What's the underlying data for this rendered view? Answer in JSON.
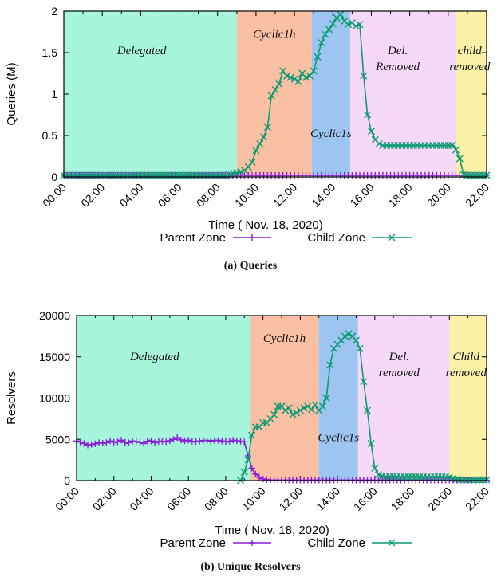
{
  "chart_data": [
    {
      "type": "line",
      "caption": "(a) Queries",
      "ylabel": "Queries (M)",
      "xlabel": "Time ( Nov. 18, 2020)",
      "x_ticks": [
        "00:00",
        "02:00",
        "04:00",
        "06:00",
        "08:00",
        "10:00",
        "12:00",
        "14:00",
        "16:00",
        "18:00",
        "20:00",
        "22:00"
      ],
      "xlim": [
        0,
        22
      ],
      "ylim": [
        0,
        2
      ],
      "y_ticks": [
        0,
        0.5,
        1,
        1.5,
        2
      ],
      "y_tick_labels": [
        "0",
        "0.5",
        "1",
        "1.5",
        "2"
      ],
      "legend": {
        "position": "bottom"
      },
      "regions": [
        {
          "name": "Delegated",
          "from": 0,
          "to": 9.0,
          "color": "#a7f5dc"
        },
        {
          "name": "Cyclic1h",
          "from": 9.0,
          "to": 12.9,
          "color": "#f9c0a4"
        },
        {
          "name": "Cyclic1s",
          "from": 12.9,
          "to": 14.9,
          "color": "#9cc5f2"
        },
        {
          "name": "Del. Removed",
          "from": 14.9,
          "to": 20.4,
          "color": "#f6d8f8"
        },
        {
          "name": "child removed",
          "from": 20.4,
          "to": 22,
          "color": "#faf2a6"
        }
      ],
      "series": [
        {
          "name": "Parent Zone",
          "color": "#8a1fd6",
          "marker": "plus",
          "points": [
            [
              0,
              0.02
            ],
            [
              22,
              0.02
            ]
          ]
        },
        {
          "name": "Child Zone",
          "color": "#0c9a70",
          "marker": "x",
          "points": [
            [
              0,
              0.02
            ],
            [
              8.5,
              0.02
            ],
            [
              8.8,
              0.04
            ],
            [
              9.0,
              0.05
            ],
            [
              9.2,
              0.06
            ],
            [
              9.4,
              0.08
            ],
            [
              9.6,
              0.12
            ],
            [
              9.8,
              0.18
            ],
            [
              10.0,
              0.32
            ],
            [
              10.2,
              0.4
            ],
            [
              10.4,
              0.48
            ],
            [
              10.6,
              0.6
            ],
            [
              10.8,
              0.98
            ],
            [
              11.0,
              1.05
            ],
            [
              11.2,
              1.12
            ],
            [
              11.4,
              1.28
            ],
            [
              11.6,
              1.22
            ],
            [
              11.8,
              1.2
            ],
            [
              12.0,
              1.18
            ],
            [
              12.2,
              1.15
            ],
            [
              12.4,
              1.25
            ],
            [
              12.6,
              1.2
            ],
            [
              12.8,
              1.22
            ],
            [
              13.0,
              1.28
            ],
            [
              13.2,
              1.45
            ],
            [
              13.4,
              1.62
            ],
            [
              13.6,
              1.72
            ],
            [
              13.8,
              1.78
            ],
            [
              14.0,
              1.85
            ],
            [
              14.2,
              1.92
            ],
            [
              14.4,
              1.96
            ],
            [
              14.6,
              1.88
            ],
            [
              14.8,
              1.84
            ],
            [
              15.0,
              1.86
            ],
            [
              15.2,
              1.82
            ],
            [
              15.4,
              1.84
            ],
            [
              15.6,
              1.22
            ],
            [
              15.8,
              0.75
            ],
            [
              16.0,
              0.55
            ],
            [
              16.2,
              0.45
            ],
            [
              16.4,
              0.4
            ],
            [
              16.6,
              0.38
            ],
            [
              16.8,
              0.38
            ],
            [
              17.0,
              0.38
            ],
            [
              17.5,
              0.38
            ],
            [
              18.0,
              0.38
            ],
            [
              18.5,
              0.38
            ],
            [
              19.0,
              0.38
            ],
            [
              19.5,
              0.38
            ],
            [
              20.0,
              0.38
            ],
            [
              20.3,
              0.38
            ],
            [
              20.6,
              0.22
            ],
            [
              20.8,
              0.03
            ],
            [
              21.0,
              0.02
            ],
            [
              22,
              0.02
            ]
          ]
        }
      ]
    },
    {
      "type": "line",
      "caption": "(b) Unique Resolvers",
      "ylabel": "Resolvers",
      "xlabel": "Time ( Nov. 18, 2020)",
      "x_ticks": [
        "00:00",
        "02:00",
        "04:00",
        "06:00",
        "08:00",
        "10:00",
        "12:00",
        "14:00",
        "16:00",
        "18:00",
        "20:00",
        "22:00"
      ],
      "xlim": [
        0,
        22
      ],
      "ylim": [
        0,
        20000
      ],
      "y_ticks": [
        0,
        5000,
        10000,
        15000,
        20000
      ],
      "y_tick_labels": [
        "0",
        "5000",
        "10000",
        "15000",
        "20000"
      ],
      "legend": {
        "position": "bottom"
      },
      "regions": [
        {
          "name": "Delegated",
          "from": 0,
          "to": 9.3,
          "color": "#a7f5dc"
        },
        {
          "name": "Cyclic1h",
          "from": 9.3,
          "to": 13.0,
          "color": "#f9c0a4"
        },
        {
          "name": "Cyclic1s",
          "from": 13.0,
          "to": 15.1,
          "color": "#9cc5f2"
        },
        {
          "name": "Del. removed",
          "from": 15.1,
          "to": 20.0,
          "color": "#f6d8f8"
        },
        {
          "name": "Child removed",
          "from": 20.0,
          "to": 22,
          "color": "#faf2a6"
        }
      ],
      "series": [
        {
          "name": "Parent Zone",
          "color": "#8a1fd6",
          "marker": "plus",
          "points": [
            [
              0,
              4800
            ],
            [
              0.3,
              4600
            ],
            [
              0.6,
              4300
            ],
            [
              0.9,
              4400
            ],
            [
              1.2,
              4600
            ],
            [
              1.5,
              4500
            ],
            [
              1.8,
              4800
            ],
            [
              2.1,
              4600
            ],
            [
              2.4,
              4900
            ],
            [
              2.7,
              4500
            ],
            [
              3.0,
              4800
            ],
            [
              3.3,
              4700
            ],
            [
              3.6,
              4500
            ],
            [
              3.9,
              4900
            ],
            [
              4.2,
              4600
            ],
            [
              4.5,
              4800
            ],
            [
              4.8,
              4700
            ],
            [
              5.1,
              4900
            ],
            [
              5.4,
              5200
            ],
            [
              5.7,
              4800
            ],
            [
              6.0,
              4900
            ],
            [
              6.3,
              4700
            ],
            [
              6.6,
              4800
            ],
            [
              6.9,
              4900
            ],
            [
              7.2,
              4800
            ],
            [
              7.5,
              4900
            ],
            [
              7.8,
              4800
            ],
            [
              8.1,
              4700
            ],
            [
              8.4,
              4900
            ],
            [
              8.7,
              4800
            ],
            [
              9.0,
              4700
            ],
            [
              9.2,
              3000
            ],
            [
              9.4,
              1500
            ],
            [
              9.6,
              800
            ],
            [
              9.8,
              400
            ],
            [
              10.0,
              200
            ],
            [
              10.3,
              80
            ],
            [
              11,
              50
            ],
            [
              12,
              50
            ],
            [
              14,
              50
            ],
            [
              16,
              50
            ],
            [
              18,
              50
            ],
            [
              20,
              50
            ],
            [
              22,
              50
            ]
          ]
        },
        {
          "name": "Child Zone",
          "color": "#0c9a70",
          "marker": "x",
          "points": [
            [
              8.8,
              0
            ],
            [
              9.0,
              1000
            ],
            [
              9.2,
              2500
            ],
            [
              9.4,
              5500
            ],
            [
              9.6,
              6500
            ],
            [
              9.8,
              6500
            ],
            [
              10.0,
              7000
            ],
            [
              10.2,
              7000
            ],
            [
              10.4,
              7500
            ],
            [
              10.6,
              8000
            ],
            [
              10.8,
              9000
            ],
            [
              11.0,
              9000
            ],
            [
              11.2,
              8500
            ],
            [
              11.4,
              8800
            ],
            [
              11.6,
              8000
            ],
            [
              11.8,
              8200
            ],
            [
              12.0,
              8500
            ],
            [
              12.2,
              8800
            ],
            [
              12.4,
              9000
            ],
            [
              12.6,
              8600
            ],
            [
              12.8,
              9200
            ],
            [
              13.0,
              8500
            ],
            [
              13.2,
              9000
            ],
            [
              13.4,
              10000
            ],
            [
              13.6,
              14000
            ],
            [
              13.8,
              16000
            ],
            [
              14.0,
              16500
            ],
            [
              14.2,
              17000
            ],
            [
              14.4,
              17500
            ],
            [
              14.6,
              17800
            ],
            [
              14.8,
              17500
            ],
            [
              15.0,
              17000
            ],
            [
              15.2,
              16000
            ],
            [
              15.4,
              12000
            ],
            [
              15.6,
              8500
            ],
            [
              15.8,
              4500
            ],
            [
              16.0,
              1500
            ],
            [
              16.2,
              700
            ],
            [
              16.5,
              500
            ],
            [
              17,
              500
            ],
            [
              17.5,
              450
            ],
            [
              18,
              450
            ],
            [
              18.5,
              450
            ],
            [
              19,
              450
            ],
            [
              19.5,
              450
            ],
            [
              20,
              400
            ],
            [
              20.3,
              200
            ],
            [
              20.6,
              100
            ],
            [
              21,
              100
            ],
            [
              22,
              100
            ]
          ]
        }
      ]
    }
  ]
}
